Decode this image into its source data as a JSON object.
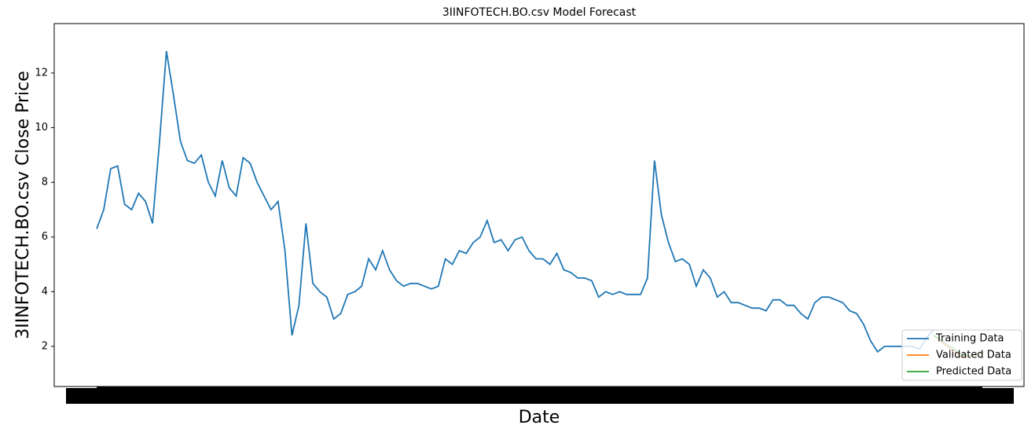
{
  "chart_data": {
    "type": "line",
    "title": "3IINFOTECH.BO.csv Model Forecast",
    "xlabel": "Date",
    "ylabel": "3IINFOTECH.BO.csv Close Price",
    "x": [
      0,
      1,
      2,
      3,
      4,
      5,
      6,
      7,
      8,
      9,
      10,
      11,
      12,
      13,
      14,
      15,
      16,
      17,
      18,
      19,
      20,
      21,
      22,
      23,
      24,
      25,
      26,
      27,
      28,
      29,
      30,
      31,
      32,
      33,
      34,
      35,
      36,
      37,
      38,
      39,
      40,
      41,
      42,
      43,
      44,
      45,
      46,
      47,
      48,
      49,
      50,
      51,
      52,
      53,
      54,
      55,
      56,
      57,
      58,
      59,
      60,
      61,
      62,
      63,
      64,
      65,
      66,
      67,
      68,
      69,
      70,
      71,
      72,
      73,
      74,
      75,
      76,
      77,
      78,
      79,
      80,
      81,
      82,
      83,
      84,
      85,
      86,
      87,
      88,
      89,
      90,
      91,
      92,
      93,
      94,
      95,
      96,
      97,
      98,
      99,
      100,
      101,
      102,
      103,
      104,
      105,
      106,
      107,
      108,
      109,
      110,
      111,
      112,
      113,
      114,
      115,
      116,
      117,
      118,
      119,
      120,
      121,
      122,
      123,
      124,
      125,
      126,
      127
    ],
    "series": [
      {
        "name": "Training Data",
        "color": "#1f77b4",
        "values": [
          6.3,
          7.0,
          8.5,
          8.6,
          7.2,
          7.0,
          7.6,
          7.3,
          6.5,
          9.5,
          12.8,
          11.2,
          9.5,
          8.8,
          8.7,
          9.0,
          8.0,
          7.5,
          8.8,
          7.8,
          7.5,
          8.9,
          8.7,
          8.0,
          7.5,
          7.0,
          7.3,
          5.5,
          2.4,
          3.5,
          6.5,
          4.3,
          4.0,
          3.8,
          3.0,
          3.2,
          3.9,
          4.0,
          4.2,
          5.2,
          4.8,
          5.5,
          4.8,
          4.4,
          4.2,
          4.3,
          4.3,
          4.2,
          4.1,
          4.2,
          5.2,
          5.0,
          5.5,
          5.4,
          5.8,
          6.0,
          6.6,
          5.8,
          5.9,
          5.5,
          5.9,
          6.0,
          5.5,
          5.2,
          5.2,
          5.0,
          5.4,
          4.8,
          4.7,
          4.5,
          4.5,
          4.4,
          3.8,
          4.0,
          3.9,
          4.0,
          3.9,
          3.9,
          3.9,
          4.5,
          8.8,
          6.8,
          5.8,
          5.1,
          5.2,
          5.0,
          4.2,
          4.8,
          4.5,
          3.8,
          4.0,
          3.6,
          3.6,
          3.5,
          3.4,
          3.4,
          3.3,
          3.7,
          3.7,
          3.5,
          3.5,
          3.2,
          3.0,
          3.6,
          3.8,
          3.8,
          3.7,
          3.6,
          3.3,
          3.2,
          2.8,
          2.2,
          1.8,
          2.0,
          2.0,
          2.0,
          2.0,
          2.0,
          1.9,
          2.3,
          2.6,
          null,
          null,
          null,
          null,
          null,
          null,
          null
        ]
      },
      {
        "name": "Validated Data",
        "color": "#ff7f0e",
        "values": [
          null,
          null,
          null,
          null,
          null,
          null,
          null,
          null,
          null,
          null,
          null,
          null,
          null,
          null,
          null,
          null,
          null,
          null,
          null,
          null,
          null,
          null,
          null,
          null,
          null,
          null,
          null,
          null,
          null,
          null,
          null,
          null,
          null,
          null,
          null,
          null,
          null,
          null,
          null,
          null,
          null,
          null,
          null,
          null,
          null,
          null,
          null,
          null,
          null,
          null,
          null,
          null,
          null,
          null,
          null,
          null,
          null,
          null,
          null,
          null,
          null,
          null,
          null,
          null,
          null,
          null,
          null,
          null,
          null,
          null,
          null,
          null,
          null,
          null,
          null,
          null,
          null,
          null,
          null,
          null,
          null,
          null,
          null,
          null,
          null,
          null,
          null,
          null,
          null,
          null,
          null,
          null,
          null,
          null,
          null,
          null,
          null,
          null,
          null,
          null,
          null,
          null,
          null,
          null,
          null,
          null,
          null,
          null,
          null,
          null,
          null,
          null,
          null,
          null,
          null,
          null,
          null,
          null,
          null,
          null,
          2.4,
          2.2,
          2.0,
          1.8,
          1.6,
          1.6,
          1.7,
          1.8
        ]
      },
      {
        "name": "Predicted Data",
        "color": "#2ca02c",
        "values": [
          null,
          null,
          null,
          null,
          null,
          null,
          null,
          null,
          null,
          null,
          null,
          null,
          null,
          null,
          null,
          null,
          null,
          null,
          null,
          null,
          null,
          null,
          null,
          null,
          null,
          null,
          null,
          null,
          null,
          null,
          null,
          null,
          null,
          null,
          null,
          null,
          null,
          null,
          null,
          null,
          null,
          null,
          null,
          null,
          null,
          null,
          null,
          null,
          null,
          null,
          null,
          null,
          null,
          null,
          null,
          null,
          null,
          null,
          null,
          null,
          null,
          null,
          null,
          null,
          null,
          null,
          null,
          null,
          null,
          null,
          null,
          null,
          null,
          null,
          null,
          null,
          null,
          null,
          null,
          null,
          null,
          null,
          null,
          null,
          null,
          null,
          null,
          null,
          null,
          null,
          null,
          null,
          null,
          null,
          null,
          null,
          null,
          null,
          null,
          null,
          null,
          null,
          null,
          null,
          null,
          null,
          null,
          null,
          null,
          null,
          null,
          null,
          null,
          null,
          null,
          null,
          null,
          null,
          null,
          null,
          2.4,
          2.25,
          2.05,
          1.9,
          1.7,
          1.65,
          1.7,
          1.85
        ]
      }
    ],
    "xlim": [
      -6.1,
      133
    ],
    "ylim": [
      0.53,
      13.81
    ],
    "yticks": [
      2,
      4,
      6,
      8,
      10,
      12
    ],
    "legend": "lower right"
  }
}
